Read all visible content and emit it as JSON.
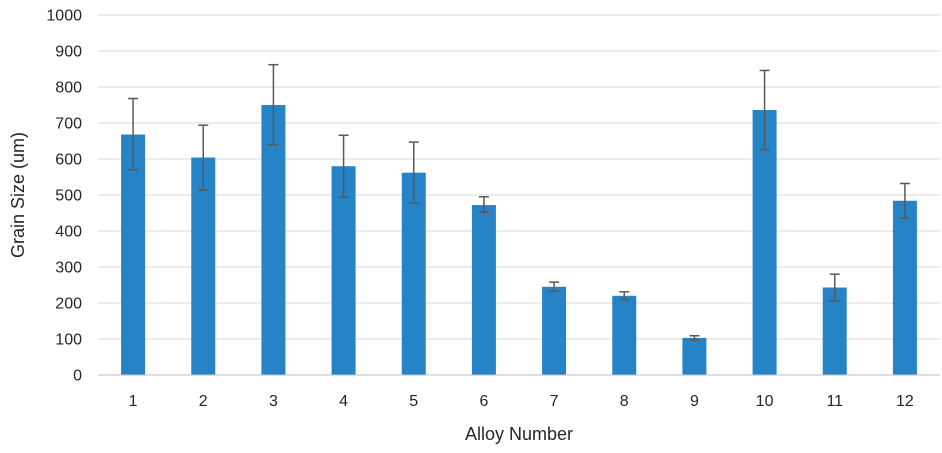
{
  "chart_data": {
    "type": "bar",
    "xlabel": "Alloy Number",
    "ylabel": "Grain Size (um)",
    "categories": [
      "1",
      "2",
      "3",
      "4",
      "5",
      "6",
      "7",
      "8",
      "9",
      "10",
      "11",
      "12"
    ],
    "values": [
      668,
      604,
      750,
      580,
      562,
      472,
      245,
      220,
      103,
      736,
      243,
      484
    ],
    "error_upper": [
      100,
      90,
      112,
      86,
      85,
      23,
      13,
      11,
      6,
      110,
      37,
      48
    ],
    "error_lower": [
      98,
      90,
      110,
      86,
      84,
      20,
      12,
      10,
      6,
      110,
      37,
      48
    ],
    "ylim": [
      0,
      1000
    ],
    "yticks": [
      "0",
      "100",
      "200",
      "300",
      "400",
      "500",
      "600",
      "700",
      "800",
      "900",
      "1000"
    ],
    "grid": true,
    "legend": "none",
    "colors": {
      "bar": "#2683c6",
      "error_bar": "#595959",
      "grid": "#d9d9d9"
    }
  }
}
